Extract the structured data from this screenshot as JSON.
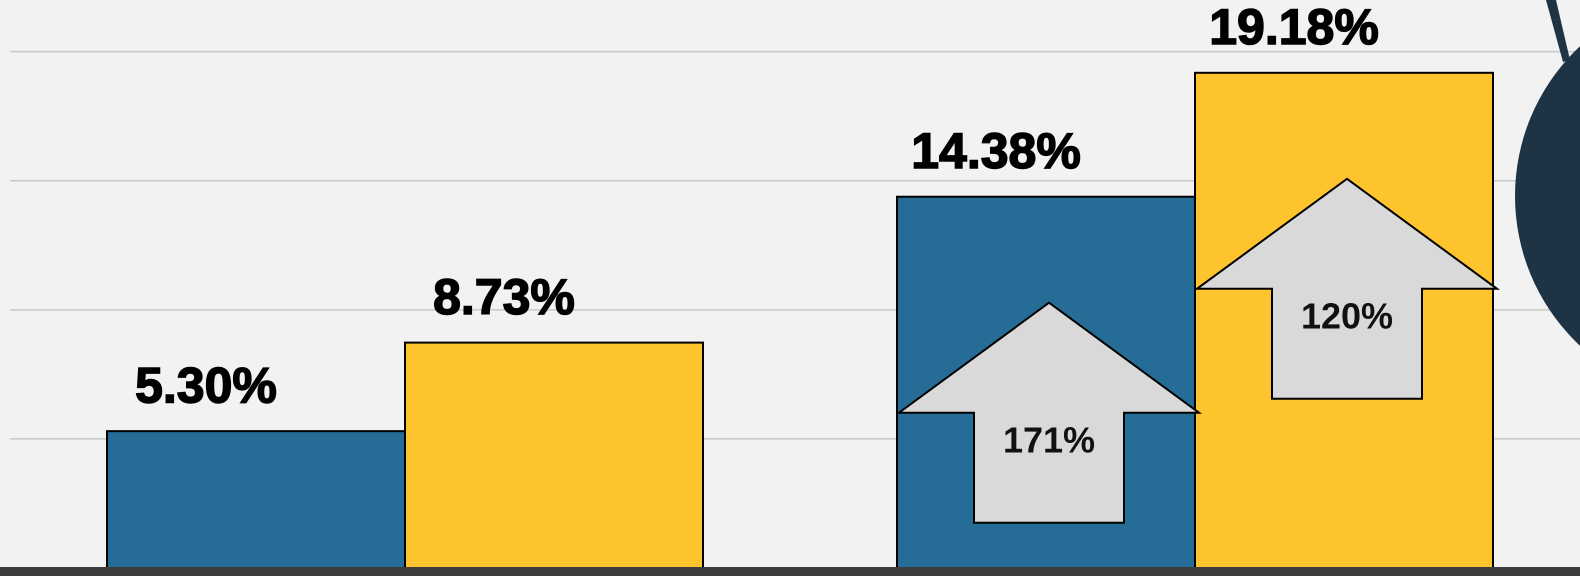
{
  "chart_data": {
    "type": "bar",
    "categories": [
      null,
      null
    ],
    "series": [
      {
        "color": "#256d96",
        "values": [
          5.3,
          14.38
        ],
        "value_labels": [
          "5.30%",
          "14.38%"
        ]
      },
      {
        "color": "#fec42d",
        "values": [
          8.73,
          19.18
        ],
        "value_labels": [
          "8.73%",
          "19.18%"
        ]
      }
    ],
    "ylim": [
      0,
      22
    ],
    "yticks": [
      5,
      10,
      15,
      20
    ],
    "grid": true,
    "annotations": [
      {
        "series": 0,
        "category": 1,
        "text": "171%"
      },
      {
        "series": 1,
        "category": 1,
        "text": "120%"
      }
    ]
  }
}
